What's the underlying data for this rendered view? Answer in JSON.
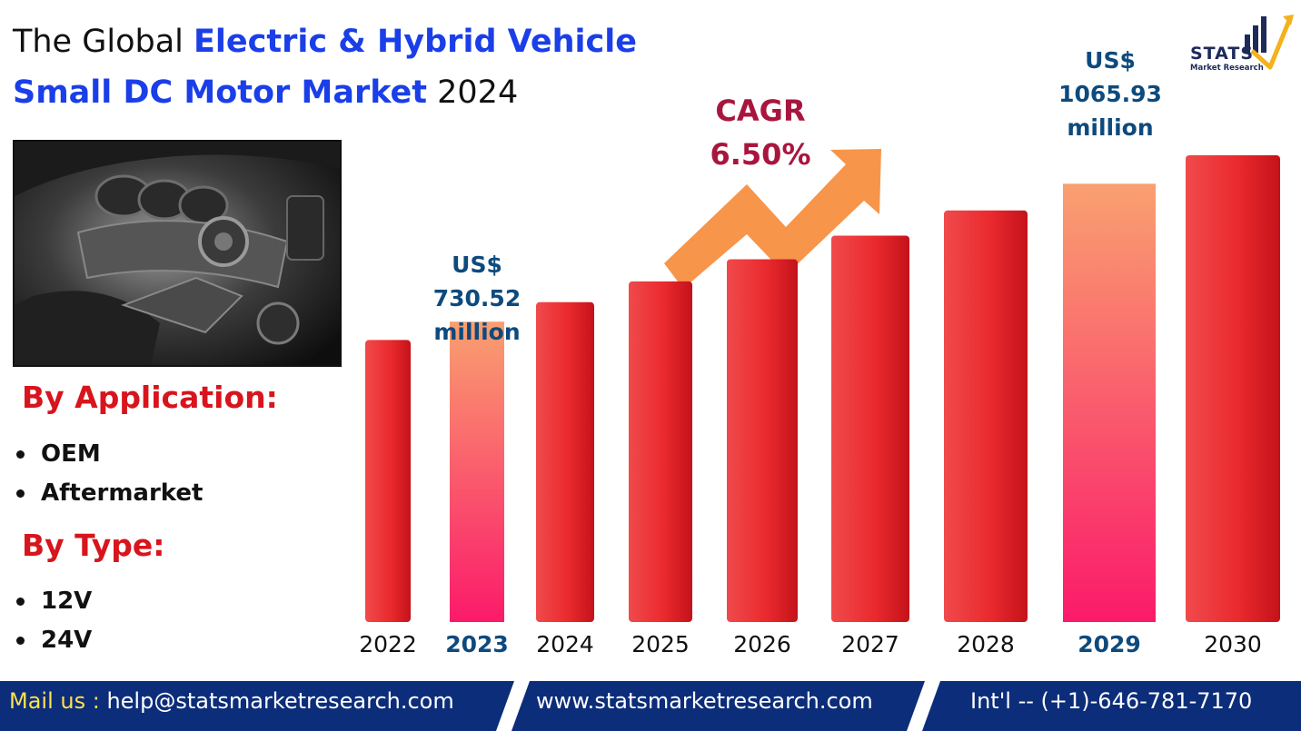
{
  "title": {
    "prefix": "The Global ",
    "highlight_line1": "Electric & Hybrid Vehicle",
    "highlight_line2": "Small DC Motor Market",
    "suffix": " 2024"
  },
  "photo": {
    "alt": "engine-bay-photo"
  },
  "segments": {
    "application_heading": "By Application:",
    "application_items": [
      "OEM",
      "Aftermarket"
    ],
    "type_heading": "By Type:",
    "type_items": [
      "12V",
      "24V"
    ]
  },
  "cagr": {
    "label": "CAGR",
    "value": "6.50%"
  },
  "callouts": {
    "start": {
      "l1": "US$",
      "l2": "730.52",
      "l3": "million"
    },
    "end": {
      "l1": "US$",
      "l2": "1065.93",
      "l3": "million"
    }
  },
  "logo": {
    "main": "STATS",
    "sub": "Market Research"
  },
  "footer": {
    "mail_label": "Mail us :",
    "mail_value": " help@statsmarketresearch.com",
    "website": "www.statsmarketresearch.com",
    "phone": "Int'l -- (+1)-646-781-7170"
  },
  "colors": {
    "bar_red": "#e8262a",
    "bar_highlight_top": "#f9a070",
    "bar_highlight_bottom": "#fb1a6a",
    "arrow": "#f7954a",
    "footer_bg": "#0c2d7a",
    "title_blue": "#1a3ee8",
    "cagr": "#a8163e",
    "value_label": "#0d4a7d"
  },
  "chart_data": {
    "type": "bar",
    "categories": [
      "2022",
      "2023",
      "2024",
      "2025",
      "2026",
      "2027",
      "2028",
      "2029",
      "2030"
    ],
    "values": [
      685.9,
      730.52,
      778.0,
      828.6,
      882.4,
      939.8,
      1000.9,
      1065.93,
      1135.2
    ],
    "highlighted": [
      "2023",
      "2029"
    ],
    "title": "",
    "xlabel": "",
    "ylabel": "",
    "unit": "US$ million",
    "ylim": [
      0,
      1200
    ],
    "grid": false,
    "legend": "none"
  }
}
